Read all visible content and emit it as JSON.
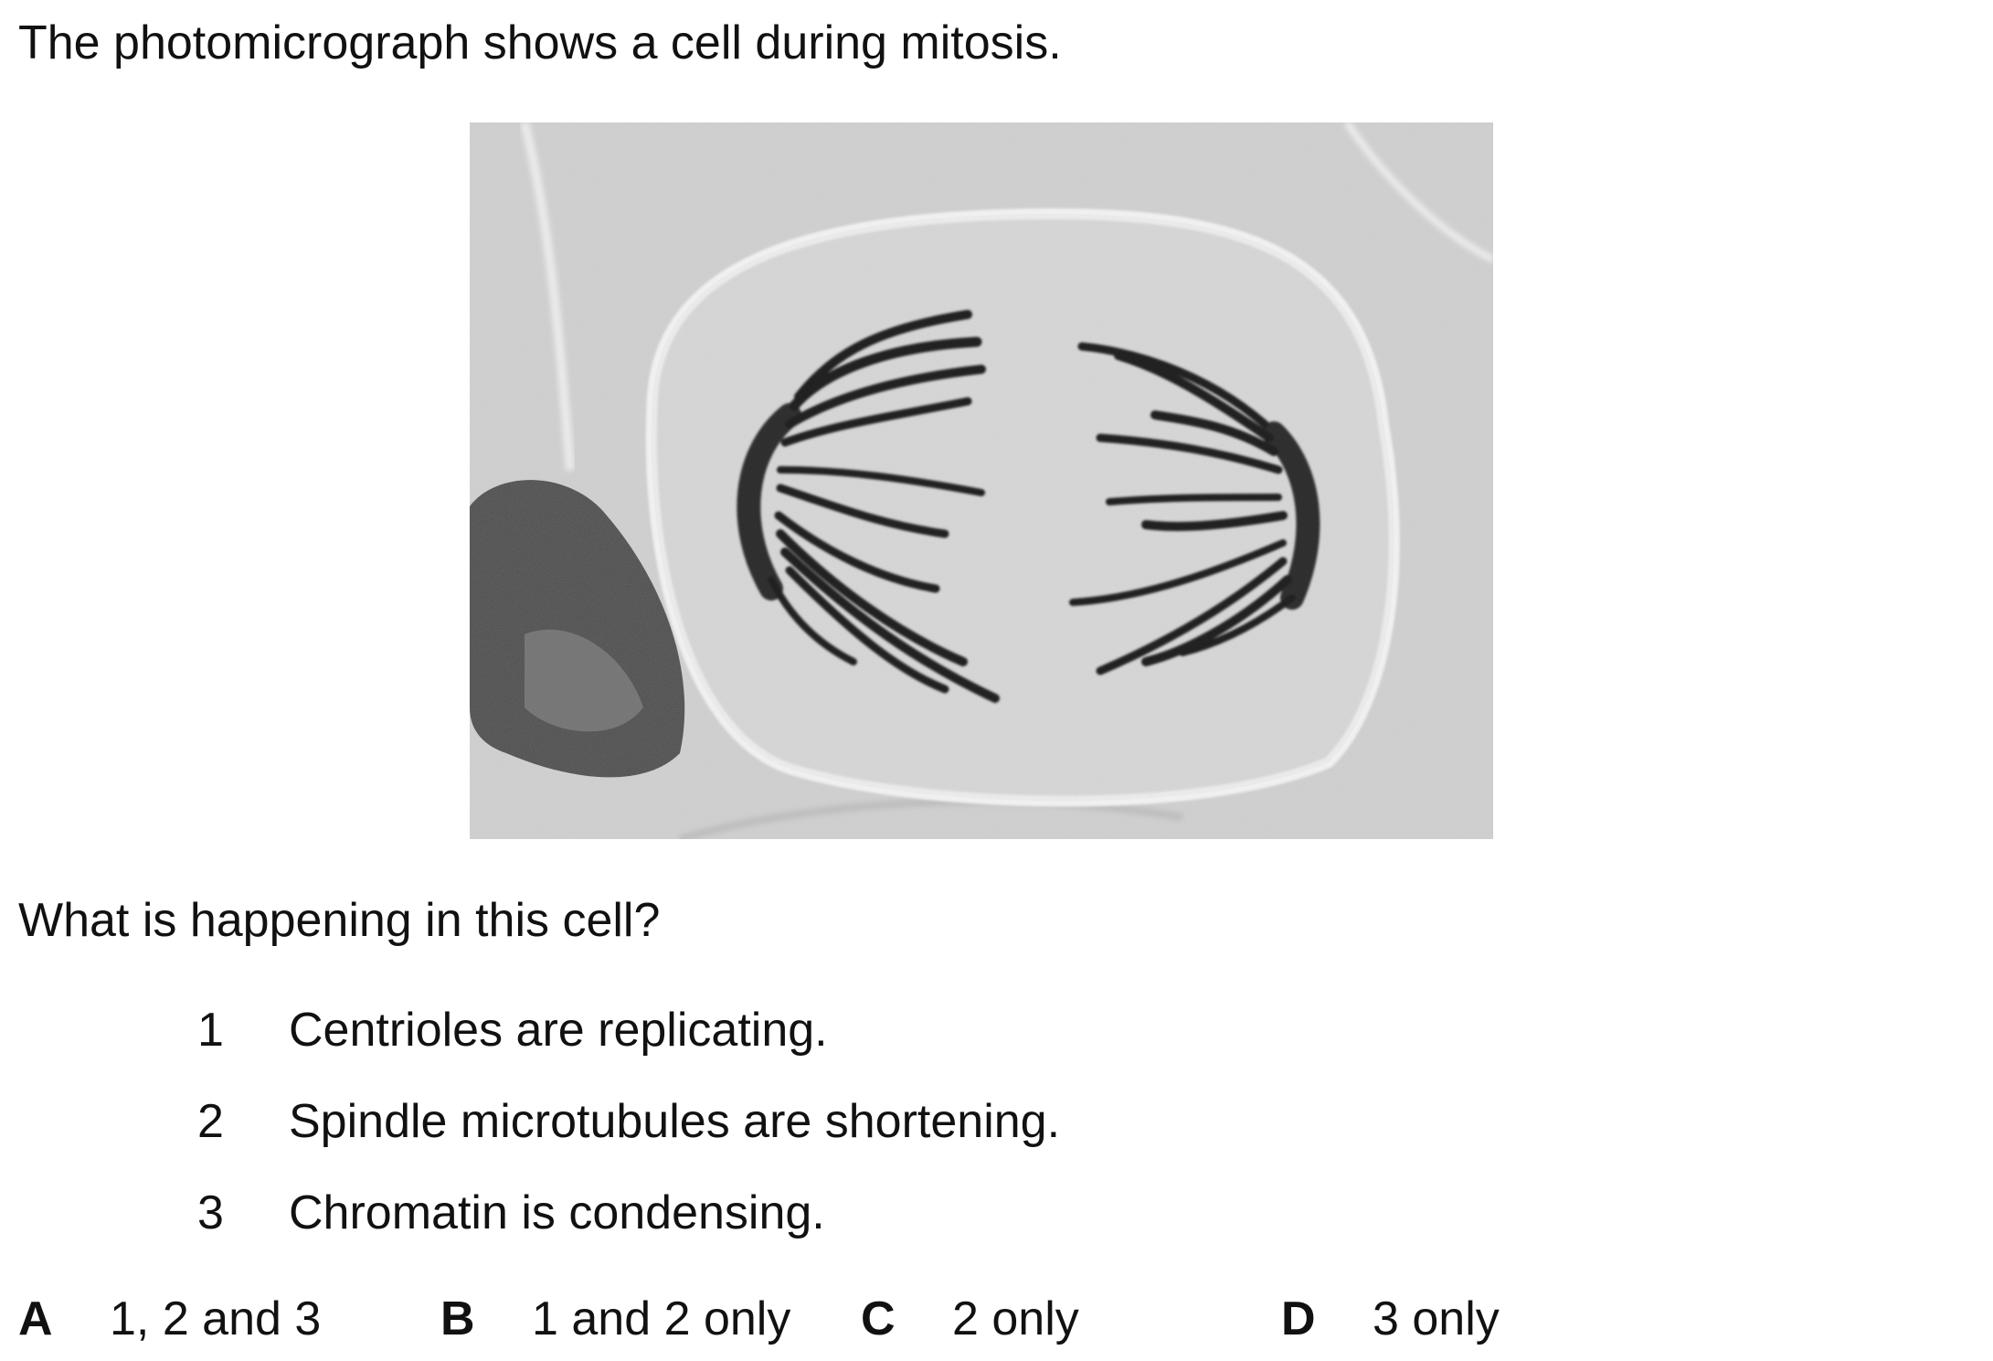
{
  "intro": "The photomicrograph shows a cell during mitosis.",
  "image": {
    "description_icon": "micrograph-anaphase-cell"
  },
  "question": "What is happening in this cell?",
  "statements": [
    {
      "number": "1",
      "text": "Centrioles are replicating."
    },
    {
      "number": "2",
      "text": "Spindle microtubules are shortening."
    },
    {
      "number": "3",
      "text": "Chromatin is condensing."
    }
  ],
  "options": [
    {
      "letter": "A",
      "text": "1, 2 and 3"
    },
    {
      "letter": "B",
      "text": "1 and 2 only"
    },
    {
      "letter": "C",
      "text": "2 only"
    },
    {
      "letter": "D",
      "text": "3 only"
    }
  ]
}
